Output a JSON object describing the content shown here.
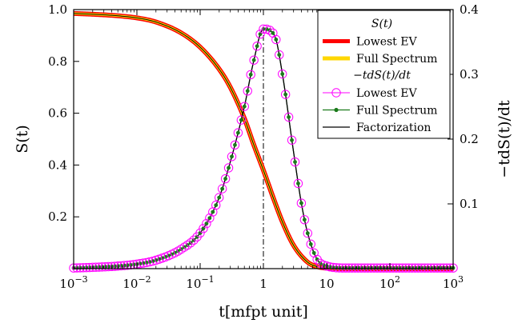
{
  "chart_data": {
    "type": "line",
    "x_scale": "log",
    "xlim": [
      0.001,
      1000
    ],
    "ylim_left": [
      0,
      1.0
    ],
    "ylim_right": [
      0,
      0.4
    ],
    "xlabel": "t[mfpt unit]",
    "ylabel_left": "S(t)",
    "ylabel_right": "−tdS(t)/dt",
    "x_ticks": [
      {
        "value": 0.001,
        "base": "10",
        "exp": "−3"
      },
      {
        "value": 0.01,
        "base": "10",
        "exp": "−2"
      },
      {
        "value": 0.1,
        "base": "10",
        "exp": "−1"
      },
      {
        "value": 1,
        "label": "1"
      },
      {
        "value": 10,
        "label": "10"
      },
      {
        "value": 100,
        "base": "10",
        "exp": "2"
      },
      {
        "value": 1000,
        "base": "10",
        "exp": "3"
      }
    ],
    "y_ticks_left": [
      "0.2",
      "0.4",
      "0.6",
      "0.8",
      "1.0"
    ],
    "y_ticks_left_values": [
      0.2,
      0.4,
      0.6,
      0.8,
      1.0
    ],
    "y_ticks_right": [
      "0.1",
      "0.2",
      "0.3",
      "0.4"
    ],
    "y_ticks_right_values": [
      0.1,
      0.2,
      0.3,
      0.4
    ],
    "vline_x": 1,
    "colors": {
      "red": "#ff0000",
      "yellow": "#ffd700",
      "magenta": "#ff00ff",
      "green": "#1a7a1a",
      "black": "#000000"
    },
    "legend": {
      "placement": "top-right",
      "head1": "S(t)",
      "items1": [
        "Lowest EV",
        "Full Spectrum"
      ],
      "head2": "−tdS(t)/dt",
      "items2": [
        "Lowest EV",
        "Full Spectrum",
        "Factorization"
      ]
    },
    "survival_series": {
      "axis": "left",
      "x": [
        0.001,
        0.002,
        0.005,
        0.01,
        0.02,
        0.05,
        0.1,
        0.2,
        0.3,
        0.5,
        0.7,
        1,
        1.5,
        2,
        3,
        5,
        7,
        10,
        20,
        100,
        1000
      ],
      "y": [
        0.985,
        0.982,
        0.976,
        0.968,
        0.952,
        0.91,
        0.855,
        0.77,
        0.7,
        0.58,
        0.48,
        0.38,
        0.26,
        0.18,
        0.09,
        0.025,
        0.008,
        0.002,
        0.0,
        0.0,
        0.0
      ]
    },
    "density_series": {
      "axis": "right",
      "x": [
        0.001,
        0.002,
        0.005,
        0.01,
        0.02,
        0.05,
        0.1,
        0.2,
        0.3,
        0.5,
        0.7,
        1,
        1.5,
        2,
        3,
        4,
        5,
        7,
        10,
        20,
        100,
        1000
      ],
      "y": [
        0.001,
        0.002,
        0.004,
        0.007,
        0.013,
        0.03,
        0.055,
        0.11,
        0.165,
        0.25,
        0.32,
        0.37,
        0.36,
        0.3,
        0.18,
        0.1,
        0.055,
        0.015,
        0.004,
        0.001,
        0.001,
        0.001
      ]
    }
  }
}
